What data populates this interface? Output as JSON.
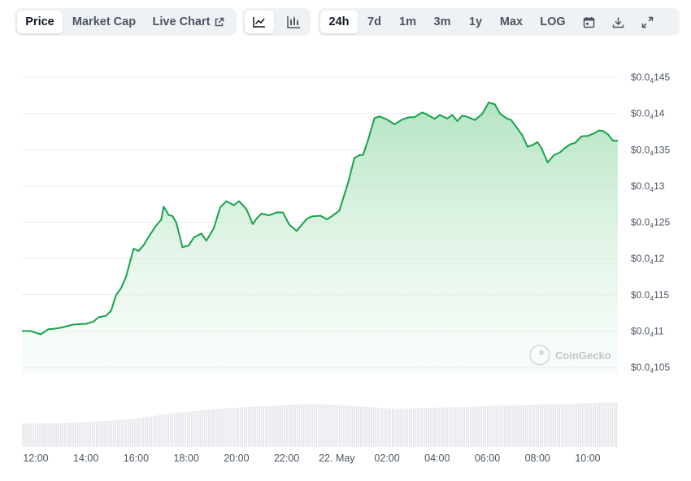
{
  "toolbar": {
    "metric_tabs": [
      {
        "label": "Price",
        "active": true
      },
      {
        "label": "Market Cap",
        "active": false
      },
      {
        "label": "Live Chart",
        "active": false,
        "icon": "external-link-icon"
      }
    ],
    "chart_type_buttons": [
      {
        "icon": "line-chart-icon",
        "active": true
      },
      {
        "icon": "candlestick-chart-icon",
        "active": false
      }
    ],
    "range_tabs": [
      {
        "label": "24h",
        "active": true
      },
      {
        "label": "7d",
        "active": false
      },
      {
        "label": "1m",
        "active": false
      },
      {
        "label": "3m",
        "active": false
      },
      {
        "label": "1y",
        "active": false
      },
      {
        "label": "Max",
        "active": false
      },
      {
        "label": "LOG",
        "active": false
      }
    ],
    "tool_buttons": [
      {
        "icon": "calendar-icon"
      },
      {
        "icon": "download-icon"
      },
      {
        "icon": "expand-icon"
      }
    ]
  },
  "watermark": {
    "text": "CoinGecko",
    "icon": "coingecko-logo-icon"
  },
  "colors": {
    "line": "#16a34a",
    "fill_top": "#a7dfb7",
    "volume": "#e5e7eb",
    "grid": "#e9ecef"
  },
  "chart_data": {
    "type": "line",
    "title": "",
    "xlabel": "",
    "ylabel": "",
    "ylim": [
      1.04e-05,
      1.45e-05
    ],
    "y_ticks": [
      {
        "value": 1.45e-05,
        "prefix": "$0.0",
        "sub": "4",
        "digits": "145"
      },
      {
        "value": 1.4e-05,
        "prefix": "$0.0",
        "sub": "4",
        "digits": "14"
      },
      {
        "value": 1.35e-05,
        "prefix": "$0.0",
        "sub": "4",
        "digits": "135"
      },
      {
        "value": 1.3e-05,
        "prefix": "$0.0",
        "sub": "4",
        "digits": "13"
      },
      {
        "value": 1.25e-05,
        "prefix": "$0.0",
        "sub": "4",
        "digits": "125"
      },
      {
        "value": 1.2e-05,
        "prefix": "$0.0",
        "sub": "4",
        "digits": "12"
      },
      {
        "value": 1.15e-05,
        "prefix": "$0.0",
        "sub": "4",
        "digits": "115"
      },
      {
        "value": 1.1e-05,
        "prefix": "$0.0",
        "sub": "4",
        "digits": "11"
      },
      {
        "value": 1.05e-05,
        "prefix": "$0.0",
        "sub": "4",
        "digits": "105"
      }
    ],
    "x_ticks": [
      {
        "label": "12:00",
        "hour": 12
      },
      {
        "label": "14:00",
        "hour": 14
      },
      {
        "label": "16:00",
        "hour": 16
      },
      {
        "label": "18:00",
        "hour": 18
      },
      {
        "label": "20:00",
        "hour": 20
      },
      {
        "label": "22:00",
        "hour": 22
      },
      {
        "label": "22. May",
        "hour": 24
      },
      {
        "label": "02:00",
        "hour": 26
      },
      {
        "label": "04:00",
        "hour": 28
      },
      {
        "label": "06:00",
        "hour": 30
      },
      {
        "label": "08:00",
        "hour": 32
      },
      {
        "label": "10:00",
        "hour": 34
      }
    ],
    "x_range": [
      11.45,
      35.2
    ],
    "price_series": {
      "hours": [
        11.45,
        11.8,
        12.2,
        12.5,
        12.7,
        13.0,
        13.5,
        14.0,
        14.3,
        14.5,
        14.8,
        15.0,
        15.2,
        15.4,
        15.6,
        15.9,
        16.1,
        16.3,
        16.5,
        16.8,
        17.0,
        17.1,
        17.3,
        17.45,
        17.6,
        17.85,
        18.1,
        18.3,
        18.6,
        18.8,
        19.1,
        19.35,
        19.6,
        19.9,
        20.1,
        20.4,
        20.65,
        20.8,
        21.0,
        21.3,
        21.6,
        21.85,
        22.1,
        22.4,
        22.6,
        22.8,
        23.0,
        23.35,
        23.6,
        23.85,
        24.1,
        24.45,
        24.7,
        24.9,
        25.05,
        25.25,
        25.5,
        25.7,
        26.0,
        26.3,
        26.6,
        26.85,
        27.1,
        27.4,
        27.6,
        27.9,
        28.1,
        28.4,
        28.6,
        28.8,
        29.0,
        29.2,
        29.5,
        29.8,
        30.05,
        30.3,
        30.5,
        30.75,
        30.95,
        31.15,
        31.4,
        31.6,
        31.8,
        32.0,
        32.15,
        32.4,
        32.65,
        32.9,
        33.1,
        33.3,
        33.5,
        33.75,
        34.0,
        34.25,
        34.45,
        34.6,
        34.8,
        35.0,
        35.2
      ],
      "values": [
        1.1e-05,
        1.1e-05,
        1.0955e-05,
        1.1025e-05,
        1.103e-05,
        1.1045e-05,
        1.109e-05,
        1.11e-05,
        1.113e-05,
        1.119e-05,
        1.121e-05,
        1.128e-05,
        1.1495e-05,
        1.159e-05,
        1.175e-05,
        1.2135e-05,
        1.2105e-05,
        1.2185e-05,
        1.23e-05,
        1.2455e-05,
        1.2535e-05,
        1.2715e-05,
        1.26e-05,
        1.2585e-05,
        1.2495e-05,
        1.2155e-05,
        1.218e-05,
        1.229e-05,
        1.2345e-05,
        1.2245e-05,
        1.242e-05,
        1.2705e-05,
        1.279e-05,
        1.2735e-05,
        1.279e-05,
        1.268e-05,
        1.2475e-05,
        1.255e-05,
        1.262e-05,
        1.2595e-05,
        1.2635e-05,
        1.2635e-05,
        1.247e-05,
        1.238e-05,
        1.2465e-05,
        1.2545e-05,
        1.258e-05,
        1.259e-05,
        1.254e-05,
        1.2595e-05,
        1.266e-05,
        1.3045e-05,
        1.3385e-05,
        1.3425e-05,
        1.343e-05,
        1.364e-05,
        1.3935e-05,
        1.396e-05,
        1.3915e-05,
        1.385e-05,
        1.3915e-05,
        1.3945e-05,
        1.395e-05,
        1.4015e-05,
        1.3985e-05,
        1.3925e-05,
        1.398e-05,
        1.393e-05,
        1.398e-05,
        1.3895e-05,
        1.397e-05,
        1.3955e-05,
        1.391e-05,
        1.3995e-05,
        1.4152e-05,
        1.4125e-05,
        1.4e-05,
        1.3935e-05,
        1.391e-05,
        1.3815e-05,
        1.3695e-05,
        1.354e-05,
        1.3565e-05,
        1.3605e-05,
        1.3525e-05,
        1.3325e-05,
        1.3425e-05,
        1.3465e-05,
        1.3525e-05,
        1.3575e-05,
        1.3595e-05,
        1.3685e-05,
        1.369e-05,
        1.3725e-05,
        1.3765e-05,
        1.376e-05,
        1.3715e-05,
        1.3625e-05,
        1.3625e-05
      ],
      "color": "#16a34a"
    },
    "volume_series": {
      "hours": [
        11.45,
        13.0,
        14.0,
        15.0,
        16.0,
        17.0,
        17.5,
        19.0,
        20.0,
        21.0,
        22.0,
        23.0,
        24.0,
        25.0,
        26.0,
        27.0,
        28.0,
        29.0,
        30.0,
        31.0,
        32.0,
        33.0,
        34.0,
        35.2
      ],
      "relative_values": [
        0.52,
        0.53,
        0.56,
        0.59,
        0.63,
        0.72,
        0.76,
        0.84,
        0.88,
        0.91,
        0.94,
        0.96,
        0.94,
        0.9,
        0.86,
        0.86,
        0.88,
        0.89,
        0.92,
        0.93,
        0.95,
        0.96,
        0.98,
        1.0
      ],
      "color": "#e5e7eb"
    },
    "grid": true,
    "legend": "none"
  }
}
